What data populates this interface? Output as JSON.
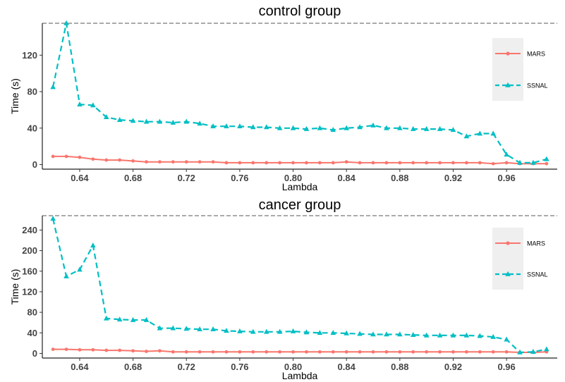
{
  "chart_data": [
    {
      "type": "line",
      "title": "control group",
      "xlabel": "Lambda",
      "ylabel": "Time (s)",
      "xlim": [
        0.612,
        0.998
      ],
      "ylim": [
        -5,
        155
      ],
      "xticks": [
        0.64,
        0.68,
        0.72,
        0.76,
        0.8,
        0.84,
        0.88,
        0.92,
        0.96
      ],
      "yticks": [
        0,
        40,
        80,
        120
      ],
      "grid": false,
      "legend": "right",
      "x": [
        0.62,
        0.63,
        0.64,
        0.65,
        0.66,
        0.67,
        0.68,
        0.69,
        0.7,
        0.71,
        0.72,
        0.73,
        0.74,
        0.75,
        0.76,
        0.77,
        0.78,
        0.79,
        0.8,
        0.81,
        0.82,
        0.83,
        0.84,
        0.85,
        0.86,
        0.87,
        0.88,
        0.89,
        0.9,
        0.91,
        0.92,
        0.93,
        0.94,
        0.95,
        0.96,
        0.97,
        0.98,
        0.99
      ],
      "series": [
        {
          "name": "MARS",
          "color": "#F8766D",
          "style": "solid",
          "values": [
            9,
            9,
            8,
            6,
            5,
            5,
            4,
            3,
            3,
            3,
            3,
            3,
            3,
            2,
            2,
            2,
            2,
            2,
            2,
            2,
            2,
            2,
            3,
            2,
            2,
            2,
            2,
            2,
            2,
            2,
            2,
            2,
            2,
            1,
            2,
            1,
            1,
            1
          ]
        },
        {
          "name": "SSNAL",
          "color": "#00BFC4",
          "style": "dashed",
          "values": [
            85,
            155,
            66,
            65,
            52,
            49,
            48,
            47,
            47,
            46,
            47,
            45,
            42,
            42,
            42,
            41,
            41,
            40,
            40,
            39,
            40,
            38,
            40,
            41,
            43,
            40,
            40,
            39,
            39,
            39,
            38,
            31,
            34,
            34,
            11,
            2,
            2,
            6
          ]
        }
      ]
    },
    {
      "type": "line",
      "title": "cancer group",
      "xlabel": "Lambda",
      "ylabel": "Time (s)",
      "xlim": [
        0.612,
        0.998
      ],
      "ylim": [
        -9,
        268
      ],
      "xticks": [
        0.64,
        0.68,
        0.72,
        0.76,
        0.8,
        0.84,
        0.88,
        0.92,
        0.96
      ],
      "yticks": [
        0,
        40,
        80,
        120,
        160,
        200,
        240
      ],
      "grid": false,
      "legend": "right",
      "x": [
        0.62,
        0.63,
        0.64,
        0.65,
        0.66,
        0.67,
        0.68,
        0.69,
        0.7,
        0.71,
        0.72,
        0.73,
        0.74,
        0.75,
        0.76,
        0.77,
        0.78,
        0.79,
        0.8,
        0.81,
        0.82,
        0.83,
        0.84,
        0.85,
        0.86,
        0.87,
        0.88,
        0.89,
        0.9,
        0.91,
        0.92,
        0.93,
        0.94,
        0.95,
        0.96,
        0.97,
        0.98,
        0.99
      ],
      "series": [
        {
          "name": "MARS",
          "color": "#F8766D",
          "style": "solid",
          "values": [
            8,
            8,
            7,
            7,
            6,
            6,
            5,
            4,
            5,
            3,
            3,
            3,
            3,
            3,
            3,
            3,
            3,
            3,
            3,
            3,
            3,
            3,
            3,
            3,
            3,
            3,
            3,
            3,
            3,
            3,
            3,
            3,
            3,
            3,
            3,
            2,
            2,
            3
          ]
        },
        {
          "name": "SSNAL",
          "color": "#00BFC4",
          "style": "dashed",
          "values": [
            262,
            150,
            163,
            210,
            68,
            66,
            65,
            65,
            49,
            49,
            48,
            47,
            47,
            44,
            43,
            42,
            42,
            42,
            43,
            41,
            40,
            40,
            39,
            38,
            37,
            37,
            37,
            36,
            35,
            35,
            35,
            35,
            34,
            32,
            27,
            2,
            3,
            8
          ]
        }
      ]
    }
  ]
}
